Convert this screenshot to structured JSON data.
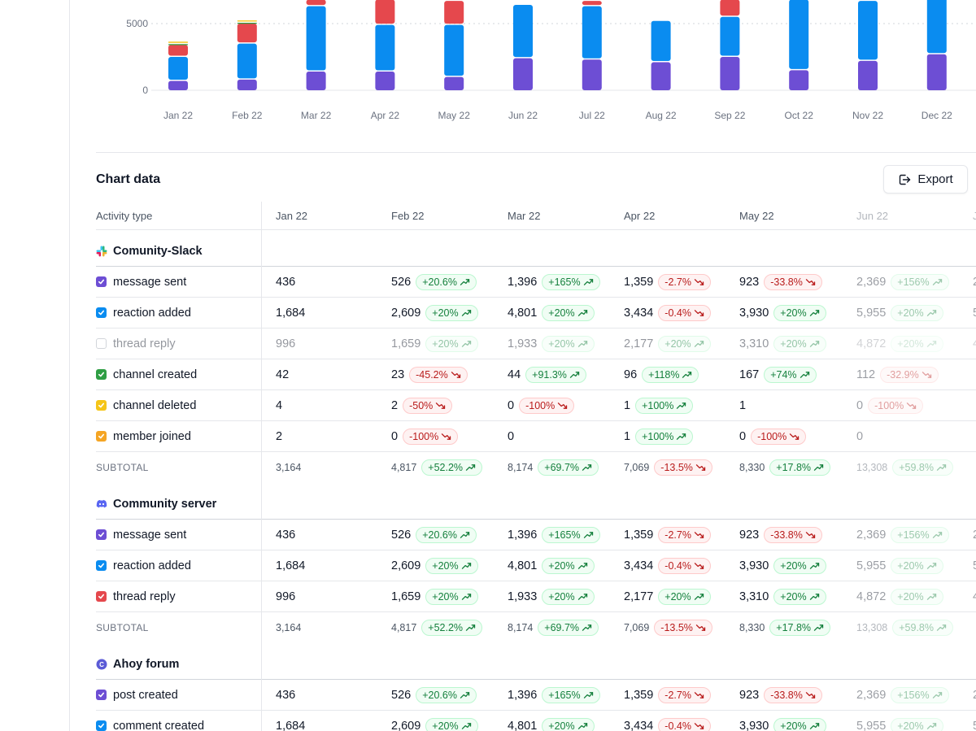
{
  "chart_data": {
    "type": "bar",
    "stacked": true,
    "categories": [
      "Jan 22",
      "Feb 22",
      "Mar 22",
      "Apr 22",
      "May 22",
      "Jun 22",
      "Jul 22",
      "Aug 22",
      "Sep 22",
      "Oct 22",
      "Nov 22",
      "Dec 22"
    ],
    "y_ticks": [
      "0",
      "5000"
    ],
    "ylim": [
      0,
      6700
    ],
    "series": [
      {
        "color": "#6d4ed4",
        "values": [
          700,
          800,
          1400,
          1400,
          1000,
          2400,
          2300,
          2100,
          2500,
          1500,
          2200,
          2700
        ]
      },
      {
        "color": "#0a8cf0",
        "values": [
          1800,
          2700,
          4900,
          3500,
          3900,
          4000,
          4000,
          3100,
          3000,
          5300,
          4500,
          4300
        ]
      },
      {
        "color": "#e5484d",
        "values": [
          900,
          1500,
          500,
          1900,
          1800,
          0,
          400,
          0,
          1300,
          0,
          0,
          0
        ]
      },
      {
        "color": "#2f9e44",
        "values": [
          60,
          60,
          0,
          0,
          0,
          0,
          0,
          0,
          0,
          0,
          0,
          0
        ]
      },
      {
        "color": "#f5c518",
        "values": [
          180,
          180,
          0,
          0,
          0,
          0,
          0,
          0,
          0,
          0,
          0,
          0
        ]
      }
    ],
    "grid": "dotted at 5000",
    "legend": "none"
  },
  "chart_section": {
    "title": "Chart data",
    "export_label": "Export"
  },
  "table": {
    "header_activity": "Activity type",
    "months": [
      "Jan 22",
      "Feb 22",
      "Mar 22",
      "Apr 22",
      "May 22",
      "Jun 22",
      "J"
    ],
    "subtotal_label": "SUBTOTAL",
    "groups": [
      {
        "name": "Comunity-Slack",
        "icon": "slack-icon",
        "rows": [
          {
            "label": "message sent",
            "color": "#6d4ed4",
            "checked": true,
            "cells": [
              [
                "436",
                ""
              ],
              [
                "526",
                "+20.6%"
              ],
              [
                "1,396",
                "+165%"
              ],
              [
                "1,359",
                "-2.7%"
              ],
              [
                "923",
                "-33.8%"
              ],
              [
                "2,369",
                "+156%"
              ],
              [
                "2",
                ""
              ]
            ]
          },
          {
            "label": "reaction added",
            "color": "#0a8cf0",
            "checked": true,
            "cells": [
              [
                "1,684",
                ""
              ],
              [
                "2,609",
                "+20%"
              ],
              [
                "4,801",
                "+20%"
              ],
              [
                "3,434",
                "-0.4%"
              ],
              [
                "3,930",
                "+20%"
              ],
              [
                "5,955",
                "+20%"
              ],
              [
                "5",
                ""
              ]
            ]
          },
          {
            "label": "thread reply",
            "color": "#9ca3af",
            "checked": false,
            "cells": [
              [
                "996",
                ""
              ],
              [
                "1,659",
                "+20%"
              ],
              [
                "1,933",
                "+20%"
              ],
              [
                "2,177",
                "+20%"
              ],
              [
                "3,310",
                "+20%"
              ],
              [
                "4,872",
                "+20%"
              ],
              [
                "4",
                ""
              ]
            ]
          },
          {
            "label": "channel created",
            "color": "#2f9e44",
            "checked": true,
            "cells": [
              [
                "42",
                ""
              ],
              [
                "23",
                "-45.2%"
              ],
              [
                "44",
                "+91.3%"
              ],
              [
                "96",
                "+118%"
              ],
              [
                "167",
                "+74%"
              ],
              [
                "112",
                "-32.9%"
              ],
              [
                "",
                ""
              ]
            ]
          },
          {
            "label": "channel deleted",
            "color": "#f5c518",
            "checked": true,
            "cells": [
              [
                "4",
                ""
              ],
              [
                "2",
                "-50%"
              ],
              [
                "0",
                "-100%"
              ],
              [
                "1",
                "+100%"
              ],
              [
                "1",
                ""
              ],
              [
                "0",
                "-100%"
              ],
              [
                "",
                ""
              ]
            ]
          },
          {
            "label": "member joined",
            "color": "#f5a524",
            "checked": true,
            "cells": [
              [
                "2",
                ""
              ],
              [
                "0",
                "-100%"
              ],
              [
                "0",
                ""
              ],
              [
                "1",
                "+100%"
              ],
              [
                "0",
                "-100%"
              ],
              [
                "0",
                ""
              ],
              [
                "",
                ""
              ]
            ]
          }
        ],
        "subtotal": [
          [
            "3,164",
            ""
          ],
          [
            "4,817",
            "+52.2%"
          ],
          [
            "8,174",
            "+69.7%"
          ],
          [
            "7,069",
            "-13.5%"
          ],
          [
            "8,330",
            "+17.8%"
          ],
          [
            "13,308",
            "+59.8%"
          ],
          [
            "",
            ""
          ]
        ]
      },
      {
        "name": "Community server",
        "icon": "discord-icon",
        "rows": [
          {
            "label": "message sent",
            "color": "#6d4ed4",
            "checked": true,
            "cells": [
              [
                "436",
                ""
              ],
              [
                "526",
                "+20.6%"
              ],
              [
                "1,396",
                "+165%"
              ],
              [
                "1,359",
                "-2.7%"
              ],
              [
                "923",
                "-33.8%"
              ],
              [
                "2,369",
                "+156%"
              ],
              [
                "2",
                ""
              ]
            ]
          },
          {
            "label": "reaction added",
            "color": "#0a8cf0",
            "checked": true,
            "cells": [
              [
                "1,684",
                ""
              ],
              [
                "2,609",
                "+20%"
              ],
              [
                "4,801",
                "+20%"
              ],
              [
                "3,434",
                "-0.4%"
              ],
              [
                "3,930",
                "+20%"
              ],
              [
                "5,955",
                "+20%"
              ],
              [
                "5",
                ""
              ]
            ]
          },
          {
            "label": "thread reply",
            "color": "#e5484d",
            "checked": true,
            "cells": [
              [
                "996",
                ""
              ],
              [
                "1,659",
                "+20%"
              ],
              [
                "1,933",
                "+20%"
              ],
              [
                "2,177",
                "+20%"
              ],
              [
                "3,310",
                "+20%"
              ],
              [
                "4,872",
                "+20%"
              ],
              [
                "4",
                ""
              ]
            ]
          }
        ],
        "subtotal": [
          [
            "3,164",
            ""
          ],
          [
            "4,817",
            "+52.2%"
          ],
          [
            "8,174",
            "+69.7%"
          ],
          [
            "7,069",
            "-13.5%"
          ],
          [
            "8,330",
            "+17.8%"
          ],
          [
            "13,308",
            "+59.8%"
          ],
          [
            "",
            ""
          ]
        ]
      },
      {
        "name": "Ahoy forum",
        "icon": "forum-icon",
        "rows": [
          {
            "label": "post created",
            "color": "#6d4ed4",
            "checked": true,
            "cells": [
              [
                "436",
                ""
              ],
              [
                "526",
                "+20.6%"
              ],
              [
                "1,396",
                "+165%"
              ],
              [
                "1,359",
                "-2.7%"
              ],
              [
                "923",
                "-33.8%"
              ],
              [
                "2,369",
                "+156%"
              ],
              [
                "2",
                ""
              ]
            ]
          },
          {
            "label": "comment created",
            "color": "#0a8cf0",
            "checked": true,
            "cells": [
              [
                "1,684",
                ""
              ],
              [
                "2,609",
                "+20%"
              ],
              [
                "4,801",
                "+20%"
              ],
              [
                "3,434",
                "-0.4%"
              ],
              [
                "3,930",
                "+20%"
              ],
              [
                "5,955",
                "+20%"
              ],
              [
                "5",
                ""
              ]
            ]
          }
        ],
        "subtotal": null
      }
    ]
  }
}
